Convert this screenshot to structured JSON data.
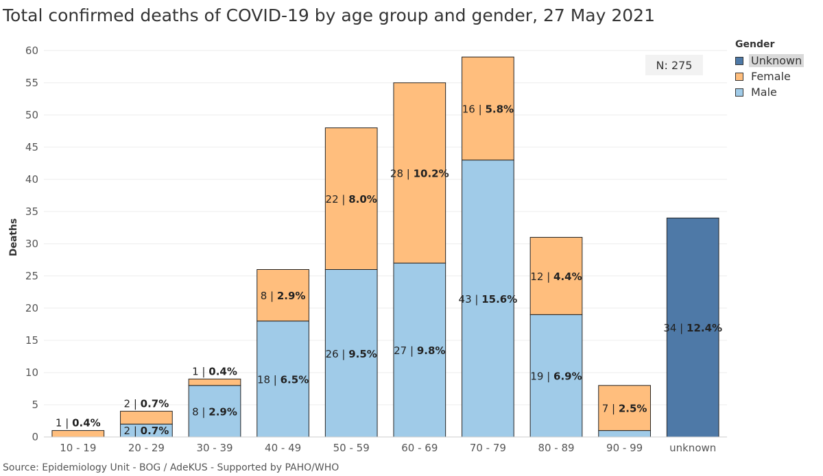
{
  "title": "Total confirmed deaths of COVID-19 by age group and gender, 27 May 2021",
  "source": "Source: Epidemiology Unit - BOG / AdeKUS - Supported by PAHO/WHO",
  "n_label": "N: 275",
  "legend": {
    "title": "Gender",
    "items": [
      {
        "label": "Unknown",
        "color": "#4e79a7"
      },
      {
        "label": "Female",
        "color": "#ffbe7d"
      },
      {
        "label": "Male",
        "color": "#a0cbe8"
      }
    ]
  },
  "chart_data": {
    "type": "bar",
    "stacked": true,
    "title": "Total confirmed deaths of COVID-19 by age group and gender, 27 May 2021",
    "xlabel": "",
    "ylabel": "Deaths",
    "ylim": [
      0,
      62
    ],
    "yticks": [
      0,
      5,
      10,
      15,
      20,
      25,
      30,
      35,
      40,
      45,
      50,
      55,
      60
    ],
    "grid": true,
    "legend_position": "top-right",
    "categories": [
      "10 - 19",
      "20 - 29",
      "30 - 39",
      "40 - 49",
      "50 - 59",
      "60 - 69",
      "70 - 79",
      "80 - 89",
      "90 - 99",
      "unknown"
    ],
    "series": [
      {
        "name": "Male",
        "color": "#a0cbe8",
        "values": [
          0,
          2,
          8,
          18,
          26,
          27,
          43,
          19,
          1,
          0
        ],
        "labels": [
          null,
          [
            "2",
            "0.7%"
          ],
          [
            "8",
            "2.9%"
          ],
          [
            "18",
            "6.5%"
          ],
          [
            "26",
            "9.5%"
          ],
          [
            "27",
            "9.8%"
          ],
          [
            "43",
            "15.6%"
          ],
          [
            "19",
            "6.9%"
          ],
          null,
          null
        ]
      },
      {
        "name": "Female",
        "color": "#ffbe7d",
        "values": [
          1,
          2,
          1,
          8,
          22,
          28,
          16,
          12,
          7,
          0
        ],
        "labels": [
          [
            "1",
            "0.4%"
          ],
          [
            "2",
            "0.7%"
          ],
          [
            "1",
            "0.4%"
          ],
          [
            "8",
            "2.9%"
          ],
          [
            "22",
            "8.0%"
          ],
          [
            "28",
            "10.2%"
          ],
          [
            "16",
            "5.8%"
          ],
          [
            "12",
            "4.4%"
          ],
          [
            "7",
            "2.5%"
          ],
          null
        ]
      },
      {
        "name": "Unknown",
        "color": "#4e79a7",
        "values": [
          0,
          0,
          0,
          0,
          0,
          0,
          0,
          0,
          0,
          34
        ],
        "labels": [
          null,
          null,
          null,
          null,
          null,
          null,
          null,
          null,
          null,
          [
            "34",
            "12.4%"
          ]
        ]
      }
    ]
  }
}
